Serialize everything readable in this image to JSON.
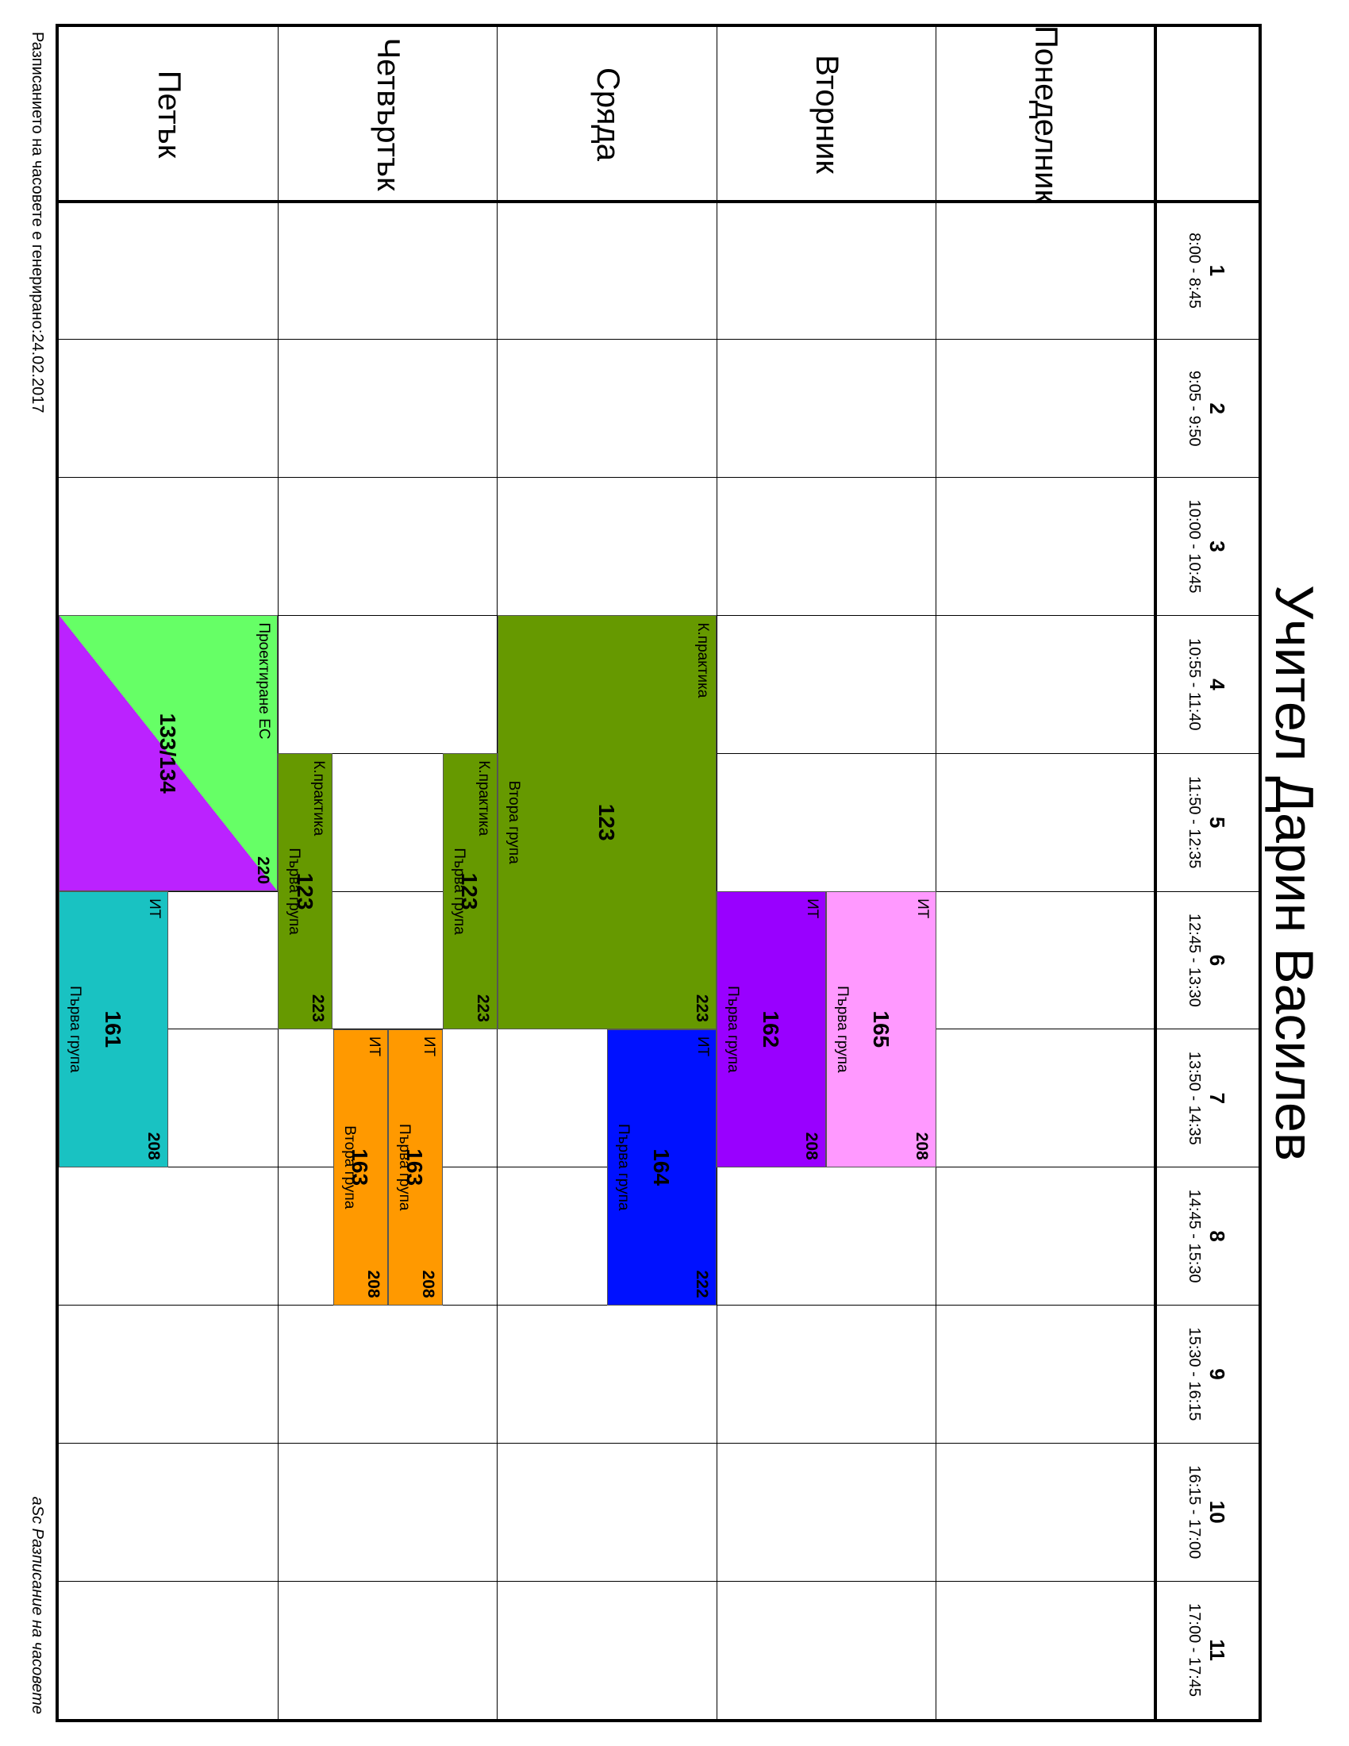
{
  "title": "Учител Дарин Василев",
  "days": [
    "Понеделник",
    "Вторник",
    "Сряда",
    "Четвъртък",
    "Петък"
  ],
  "periods": [
    {
      "num": "1",
      "time": "8:00 - 8:45"
    },
    {
      "num": "2",
      "time": "9:05 - 9:50"
    },
    {
      "num": "3",
      "time": "10:00 - 10:45"
    },
    {
      "num": "4",
      "time": "10:55 - 11:40"
    },
    {
      "num": "5",
      "time": "11:50 - 12:35"
    },
    {
      "num": "6",
      "time": "12:45 - 13:30"
    },
    {
      "num": "7",
      "time": "13:50 - 14:35"
    },
    {
      "num": "8",
      "time": "14:45 - 15:30"
    },
    {
      "num": "9",
      "time": "15:30 - 16:15"
    },
    {
      "num": "10",
      "time": "16:15 - 17:00"
    },
    {
      "num": "11",
      "time": "17:00 - 17:45"
    }
  ],
  "lessons": [
    {
      "day": 1,
      "period": 5,
      "length": 2,
      "part": 0,
      "parts": 2,
      "subject": "ИТ",
      "room": "208",
      "class": "165",
      "group": "Първа група",
      "color": "#ff99ff"
    },
    {
      "day": 1,
      "period": 5,
      "length": 2,
      "part": 1,
      "parts": 2,
      "subject": "ИТ",
      "room": "208",
      "class": "162",
      "group": "Първа група",
      "color": "#9900ff"
    },
    {
      "day": 2,
      "period": 3,
      "length": 3,
      "part": 0,
      "parts": 1,
      "subject": "К.практика",
      "room": "223",
      "class": "123",
      "group": "Втора група",
      "color": "#669900"
    },
    {
      "day": 2,
      "period": 6,
      "length": 2,
      "part": 0,
      "parts": 2,
      "subject": "ИТ",
      "room": "222",
      "class": "164",
      "group": "Първа група",
      "color": "#0011ff"
    },
    {
      "day": 3,
      "period": 4,
      "length": 2,
      "part": 0,
      "parts": 4,
      "subject": "К.практика",
      "room": "223",
      "class": "123",
      "group": "Първа група",
      "color": "#669900"
    },
    {
      "day": 3,
      "period": 6,
      "length": 2,
      "part": 1,
      "parts": 4,
      "subject": "ИТ",
      "room": "208",
      "class": "163",
      "group": "Първа група",
      "color": "#ff9900"
    },
    {
      "day": 3,
      "period": 6,
      "length": 2,
      "part": 2,
      "parts": 4,
      "subject": "ИТ",
      "room": "208",
      "class": "163",
      "group": "Втора група",
      "color": "#ff9900"
    },
    {
      "day": 3,
      "period": 4,
      "length": 2,
      "part": 3,
      "parts": 4,
      "subject": "К.практика",
      "room": "223",
      "class": "123",
      "group": "Първа група",
      "color": "#669900"
    },
    {
      "day": 4,
      "period": 3,
      "length": 2,
      "part": 0,
      "parts": 1,
      "subject": "Проектиране ЕС",
      "room": "220",
      "class": "133/134",
      "group": "",
      "color": "#66ff66",
      "color2": "#bb22ff"
    },
    {
      "day": 4,
      "period": 5,
      "length": 2,
      "part": 1,
      "parts": 2,
      "subject": "ИТ",
      "room": "208",
      "class": "161",
      "group": "Първа група",
      "color": "#19c2c2"
    }
  ],
  "footer": {
    "generated": "Разписанието на часовете е генерирано:24.02.2017",
    "brand": "aSc Разписание на часовете"
  }
}
